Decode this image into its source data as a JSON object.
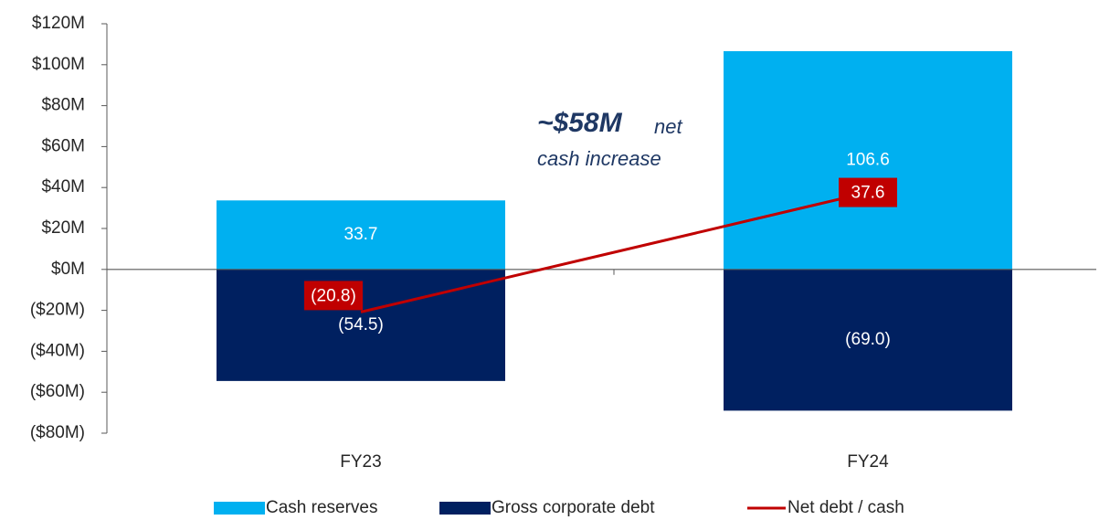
{
  "chart_data": {
    "type": "bar",
    "categories": [
      "FY23",
      "FY24"
    ],
    "series": [
      {
        "name": "Cash reserves",
        "color": "#00b0f0",
        "values": [
          33.7,
          106.6
        ]
      },
      {
        "name": "Gross corporate debt",
        "color": "#002060",
        "values": [
          -54.5,
          -69.0
        ],
        "value_labels": [
          "(54.5)",
          "(69.0)"
        ]
      },
      {
        "name": "Net debt / cash",
        "type": "line",
        "color": "#c00000",
        "values": [
          -20.8,
          37.6
        ],
        "value_labels": [
          "(20.8)",
          "37.6"
        ]
      }
    ],
    "ylim": [
      -80,
      120
    ],
    "yticks": [
      {
        "value": -80,
        "label": "($80M)"
      },
      {
        "value": -60,
        "label": "($60M)"
      },
      {
        "value": -40,
        "label": "($40M)"
      },
      {
        "value": -20,
        "label": "($20M)"
      },
      {
        "value": 0,
        "label": "$0M"
      },
      {
        "value": 20,
        "label": "$20M"
      },
      {
        "value": 40,
        "label": "$40M"
      },
      {
        "value": 60,
        "label": "$60M"
      },
      {
        "value": 80,
        "label": "$80M"
      },
      {
        "value": 100,
        "label": "$100M"
      },
      {
        "value": 120,
        "label": "$120M"
      }
    ],
    "annotation": {
      "emphasis": "~$58M",
      "lines": [
        "net",
        "cash increase"
      ]
    },
    "legend": "bottom"
  }
}
